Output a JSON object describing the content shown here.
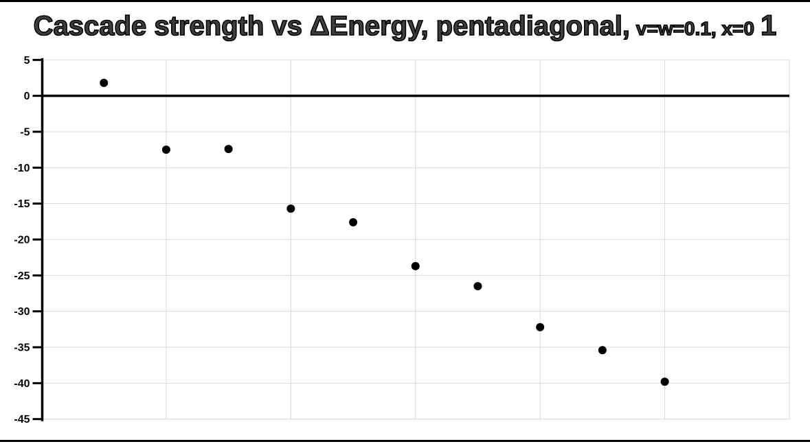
{
  "title": {
    "main": "Cascade strength vs ΔEnergy, pentadiagonal,",
    "small": "v=w=0.1, x=0",
    "suffix": "1",
    "full": "Cascade strength vs ΔEnergy, pentadiagonal, v=w=0.1, x=0 1"
  },
  "colors": {
    "background": "#ffffff",
    "title_fill": "#3f3f3f",
    "title_outline": "#000000",
    "axis": "#000000",
    "zero_line": "#000000",
    "gridline": "#d9d9d9",
    "marker": "#000000",
    "border": "#000000",
    "tick_label": "#000000"
  },
  "chart_data": {
    "type": "scatter",
    "title": "Cascade strength vs ΔEnergy, pentadiagonal, v=w=0.1, x=0 1",
    "xlabel": "",
    "ylabel": "",
    "x": [
      1,
      2,
      3,
      4,
      5,
      6,
      7,
      8,
      9,
      10
    ],
    "y": [
      1.8,
      -7.5,
      -7.4,
      -15.7,
      -17.6,
      -23.7,
      -26.5,
      -32.2,
      -35.4,
      -39.8
    ],
    "series_name": "Cascade strength",
    "xlim": [
      0,
      12
    ],
    "ylim": [
      -45,
      5
    ],
    "y_ticks": [
      5,
      0,
      -5,
      -10,
      -15,
      -20,
      -25,
      -30,
      -35,
      -40,
      -45
    ],
    "x_gridline_positions": [
      2,
      4,
      6,
      8,
      10,
      12
    ],
    "x_tick_labels_visible": false,
    "grid": "on",
    "zero_line_drawn": true,
    "legend_position": "none",
    "marker_shape": "circle",
    "marker_radius": 6
  }
}
